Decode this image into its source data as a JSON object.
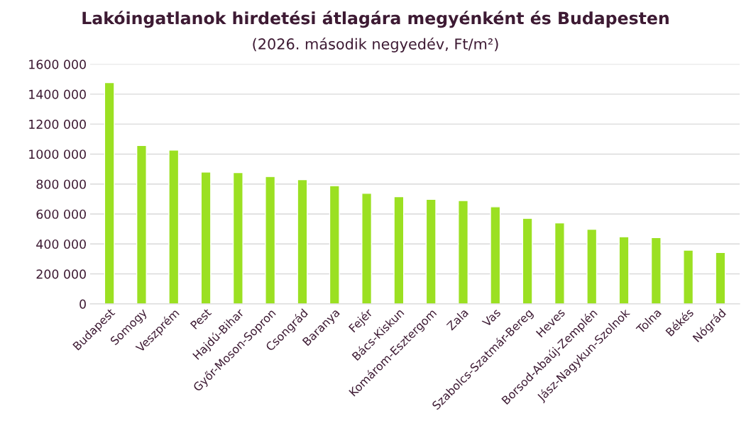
{
  "chart_data": {
    "type": "bar",
    "title": "Lakóingatlanok hirdetési átlagára megyénként és Budapesten",
    "subtitle": "(2026. második negyedév, Ft/m²)",
    "categories": [
      "Budapest",
      "Somogy",
      "Veszprém",
      "Pest",
      "Hajdú-Bihar",
      "Győr-Moson-Sopron",
      "Csongrád",
      "Baranya",
      "Fejér",
      "Bács-Kiskun",
      "Komárom-Esztergom",
      "Zala",
      "Vas",
      "Szabolcs-Szatmár-Bereg",
      "Heves",
      "Borsod-Abaúj-Zemplén",
      "Jász-Nagykun-Szolnok",
      "Tolna",
      "Békés",
      "Nógrád"
    ],
    "values": [
      1477000,
      1057000,
      1027000,
      880000,
      877000,
      850000,
      829000,
      789000,
      738000,
      716000,
      698000,
      690000,
      648000,
      571000,
      541000,
      498000,
      448000,
      442000,
      359000,
      343000
    ],
    "color": "#9be022",
    "ylim": [
      0,
      1600000
    ],
    "yticks": [
      0,
      {
        "value": 200000,
        "label": "200 000"
      },
      {
        "value": 400000,
        "label": "400 000"
      },
      {
        "value": 600000,
        "label": "600 000"
      },
      {
        "value": 800000,
        "label": "800 000"
      },
      {
        "value": 1000000,
        "label": "1000 000"
      },
      {
        "value": 1200000,
        "label": "1200 000"
      },
      {
        "value": 1400000,
        "label": "1400 000"
      },
      {
        "value": 1600000,
        "label": "1600 000"
      }
    ],
    "grid": "y"
  }
}
